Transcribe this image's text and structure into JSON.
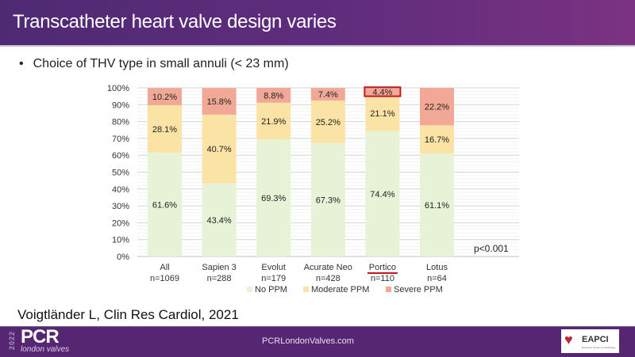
{
  "slide": {
    "title": "Transcatheter heart valve design varies",
    "bullet": "Choice of THV type in small annuli (< 23 mm)",
    "bullet_marker": "•",
    "citation": "Voigtländer L, Clin Res Cardiol, 2021"
  },
  "footer": {
    "logo_year": "2022",
    "logo_word": "PCR",
    "logo_sub": "london valves",
    "site": "PCRLondonValves.com",
    "partner_logo": "EAPCI",
    "partner_sub": "European Society of Cardiology",
    "partner_icon": "heart-icon"
  },
  "chart_data": {
    "type": "bar",
    "stacked": true,
    "title": "",
    "xlabel": "",
    "ylabel": "",
    "ylim": [
      0,
      100
    ],
    "yticks": [
      "0%",
      "10%",
      "20%",
      "30%",
      "40%",
      "50%",
      "60%",
      "70%",
      "80%",
      "90%",
      "100%"
    ],
    "grid": true,
    "legend_position": "bottom",
    "categories": [
      "All",
      "Sapien 3",
      "Evolut",
      "Acurate Neo",
      "Portico",
      "Lotus"
    ],
    "category_n": [
      "n=1069",
      "n=288",
      "n=179",
      "n=428",
      "n=110",
      "n=64"
    ],
    "highlighted_category": "Portico",
    "highlighted_label": "4.4%",
    "series": [
      {
        "name": "No PPM",
        "color": "#e8f2d6",
        "values": [
          61.6,
          43.4,
          69.3,
          67.3,
          74.4,
          61.1
        ],
        "labels": [
          "61.6%",
          "43.4%",
          "69.3%",
          "67.3%",
          "74.4%",
          "61.1%"
        ]
      },
      {
        "name": "Moderate PPM",
        "color": "#fbe3a6",
        "values": [
          28.1,
          40.7,
          21.9,
          25.2,
          21.1,
          16.7
        ],
        "labels": [
          "28.1%",
          "40.7%",
          "21.9%",
          "25.2%",
          "21.1%",
          "16.7%"
        ]
      },
      {
        "name": "Severe PPM",
        "color": "#f2a896",
        "values": [
          10.2,
          15.8,
          8.8,
          7.4,
          4.4,
          22.2
        ],
        "labels": [
          "10.2%",
          "15.8%",
          "8.8%",
          "7.4%",
          "4.4%",
          "22.2%"
        ]
      }
    ],
    "annotation": "p<0.001",
    "highlight_color": "#c0181e"
  }
}
